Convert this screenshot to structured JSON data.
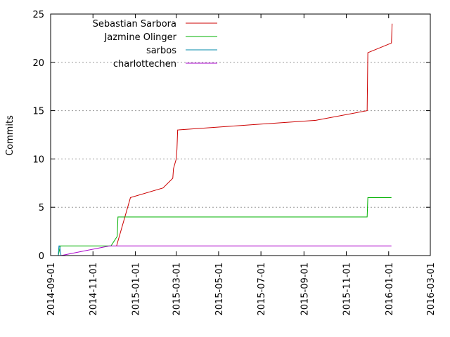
{
  "chart_data": {
    "type": "line",
    "ylabel": "Commits",
    "xlabel": "",
    "ylim": [
      0,
      25
    ],
    "yticks": [
      0,
      5,
      10,
      15,
      20,
      25
    ],
    "xlim": [
      "2014-09-01",
      "2016-03-01"
    ],
    "xticks": [
      "2014-09-01",
      "2014-11-01",
      "2015-01-01",
      "2015-03-01",
      "2015-05-01",
      "2015-07-01",
      "2015-09-01",
      "2015-11-01",
      "2016-01-01",
      "2016-03-01"
    ],
    "grid": "horizontal dotted at y ticks",
    "legend_position": "top-left",
    "series": [
      {
        "name": "Sebastian Sarbora",
        "color": "#cc0000",
        "points": [
          [
            "2014-12-05",
            1
          ],
          [
            "2014-12-21",
            5
          ],
          [
            "2014-12-25",
            6
          ],
          [
            "2015-02-10",
            7
          ],
          [
            "2015-02-24",
            8
          ],
          [
            "2015-02-25",
            9
          ],
          [
            "2015-02-27",
            9.5
          ],
          [
            "2015-03-01",
            10
          ],
          [
            "2015-03-02",
            11
          ],
          [
            "2015-03-03",
            13
          ],
          [
            "2015-09-18",
            14
          ],
          [
            "2015-12-01",
            15
          ],
          [
            "2015-12-02",
            21
          ],
          [
            "2016-01-05",
            22
          ],
          [
            "2016-01-06",
            24
          ]
        ]
      },
      {
        "name": "Jazmine Olinger",
        "color": "#00b000",
        "points": [
          [
            "2014-09-12",
            0
          ],
          [
            "2014-09-15",
            1
          ],
          [
            "2014-11-27",
            1
          ],
          [
            "2014-12-06",
            2
          ],
          [
            "2014-12-07",
            4
          ],
          [
            "2015-12-01",
            4
          ],
          [
            "2015-12-02",
            6
          ],
          [
            "2016-01-05",
            6
          ]
        ]
      },
      {
        "name": "sarbos",
        "color": "#0088aa",
        "points": [
          [
            "2014-09-12",
            0
          ],
          [
            "2014-09-13",
            1
          ],
          [
            "2014-09-14",
            1
          ],
          [
            "2014-09-16",
            0
          ]
        ]
      },
      {
        "name": "charlottechen",
        "color": "#aa00cc",
        "points": [
          [
            "2014-09-16",
            0
          ],
          [
            "2014-11-25",
            1
          ],
          [
            "2016-01-05",
            1
          ]
        ]
      }
    ]
  }
}
